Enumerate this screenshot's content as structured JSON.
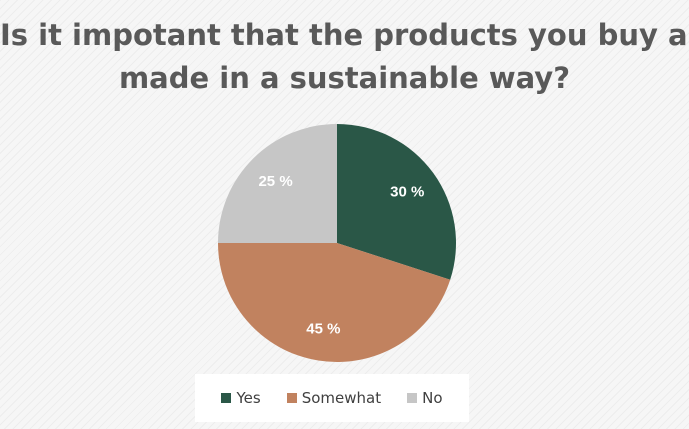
{
  "chart_data": {
    "type": "pie",
    "title_lines": [
      "Is it impotant that the products you buy are",
      "made in a sustainable way?"
    ],
    "slices": [
      {
        "name": "Yes",
        "value": 30,
        "label": "30 %",
        "color": "#2a5747"
      },
      {
        "name": "Somewhat",
        "value": 45,
        "label": "45 %",
        "color": "#c1825f"
      },
      {
        "name": "No",
        "value": 25,
        "label": "25 %",
        "color": "#c6c6c6"
      }
    ],
    "start_angle_deg": 0,
    "direction": "clockwise",
    "legend_position": "bottom"
  }
}
